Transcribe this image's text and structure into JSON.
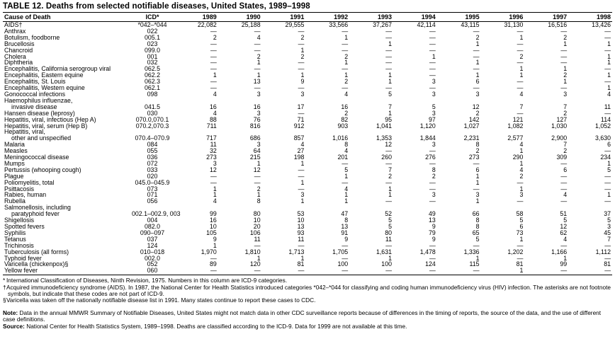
{
  "title": "TABLE 12. Deaths from selected notifiable diseases, United States, 1989–1998",
  "table": {
    "col_headers": [
      "Cause of Death",
      "ICD*",
      "1989",
      "1990",
      "1991",
      "1992",
      "1993",
      "1994",
      "1995",
      "1996",
      "1997",
      "1998"
    ],
    "rows": [
      [
        "AIDS†",
        "*042–*044",
        "22,082",
        "25,188",
        "29,555",
        "33,566",
        "37,267",
        "42,114",
        "43,115",
        "31,130",
        "16,516",
        "13,426"
      ],
      [
        "Anthrax",
        "022",
        "—",
        "—",
        "—",
        "—",
        "—",
        "—",
        "—",
        "—",
        "—",
        "—"
      ],
      [
        "Botulism, foodborne",
        "005.1",
        "2",
        "4",
        "2",
        "1",
        "—",
        "—",
        "2",
        "1",
        "2",
        "—"
      ],
      [
        "Brucellosis",
        "023",
        "—",
        "—",
        "—",
        "—",
        "1",
        "—",
        "1",
        "—",
        "1",
        "1"
      ],
      [
        "Chancroid",
        "099.0",
        "—",
        "—",
        "1",
        "—",
        "—",
        "—",
        "—",
        "—",
        "—",
        "—"
      ],
      [
        "Cholera",
        "001",
        "—",
        "2",
        "2",
        "2",
        "—",
        "1",
        "—",
        "2",
        "—",
        "1"
      ],
      [
        "Diphtheria",
        "032",
        "—",
        "1",
        "—",
        "1",
        "—",
        "—",
        "1",
        "—",
        "—",
        "1"
      ],
      [
        "Encephalitis, California serogroup viral",
        "062.5",
        "—",
        "—",
        "—",
        "—",
        "—",
        "—",
        "—",
        "1",
        "1",
        "—"
      ],
      [
        "Encephalitis, Eastern equine",
        "062.2",
        "1",
        "1",
        "1",
        "1",
        "1",
        "—",
        "1",
        "1",
        "2",
        "1"
      ],
      [
        "Encephalitis, St. Louis",
        "062.3",
        "—",
        "13",
        "9",
        "2",
        "1",
        "3",
        "6",
        "—",
        "1",
        "—"
      ],
      [
        "Encephalitis, Western equine",
        "062.1",
        "—",
        "—",
        "—",
        "—",
        "—",
        "—",
        "—",
        "—",
        "—",
        "1"
      ],
      [
        "Gonococcal infections",
        "098",
        "4",
        "3",
        "3",
        "4",
        "5",
        "3",
        "3",
        "4",
        "3",
        "4"
      ],
      [
        "Haemophilus influenzae,\ninvasive disease",
        "041.5",
        "16",
        "16",
        "17",
        "16",
        "7",
        "5",
        "12",
        "7",
        "7",
        "11"
      ],
      [
        "Hansen disease (leprosy)",
        "030",
        "4",
        "3",
        "—",
        "2",
        "1",
        "3",
        "2",
        "—",
        "2",
        "—"
      ],
      [
        "Hepatitis, viral, infectious (Hep A)",
        "070.0,070.1",
        "88",
        "76",
        "71",
        "82",
        "95",
        "97",
        "142",
        "121",
        "127",
        "114"
      ],
      [
        "Hepatitis, viral, serum (Hep B)",
        "070.2,070.3",
        "711",
        "816",
        "912",
        "903",
        "1,041",
        "1,120",
        "1,027",
        "1,082",
        "1,030",
        "1,052"
      ],
      [
        "Hepatitis, viral,\nother and unspecified",
        "070.4–070.9",
        "717",
        "686",
        "857",
        "1,016",
        "1,353",
        "1,844",
        "2,231",
        "2,577",
        "2,900",
        "3,630"
      ],
      [
        "Malaria",
        "084",
        "11",
        "3",
        "4",
        "8",
        "12",
        "3",
        "8",
        "4",
        "7",
        "6"
      ],
      [
        "Measles",
        "055",
        "32",
        "64",
        "27",
        "4",
        "—",
        "—",
        "2",
        "1",
        "2",
        "—"
      ],
      [
        "Meningococcal disease",
        "036",
        "273",
        "215",
        "198",
        "201",
        "260",
        "276",
        "273",
        "290",
        "309",
        "234"
      ],
      [
        "Mumps",
        "072",
        "3",
        "1",
        "1",
        "—",
        "—",
        "—",
        "—",
        "1",
        "—",
        "1"
      ],
      [
        "Pertussis (whooping cough)",
        "033",
        "12",
        "12",
        "—",
        "5",
        "7",
        "8",
        "6",
        "4",
        "6",
        "5"
      ],
      [
        "Plague",
        "020",
        "—",
        "—",
        "—",
        "1",
        "2",
        "2",
        "1",
        "2",
        "—",
        "—"
      ],
      [
        "Poliomyelitis, total",
        "045.0–045.9",
        "—",
        "—",
        "1",
        "—",
        "—",
        "—",
        "1",
        "—",
        "—",
        "—"
      ],
      [
        "Psittacosis",
        "073",
        "1",
        "2",
        "—",
        "4",
        "1",
        "—",
        "—",
        "1",
        "—",
        "—"
      ],
      [
        "Rabies, human",
        "071",
        "1",
        "1",
        "3",
        "1",
        "1",
        "3",
        "3",
        "3",
        "4",
        "1"
      ],
      [
        "Rubella",
        "056",
        "4",
        "8",
        "1",
        "1",
        "—",
        "—",
        "1",
        "—",
        "—",
        "—"
      ],
      [
        "Salmonellosis, including\nparatyphoid fever",
        "002.1–002.9, 003",
        "99",
        "80",
        "53",
        "47",
        "52",
        "49",
        "66",
        "58",
        "51",
        "37"
      ],
      [
        "Shigellosis",
        "004",
        "16",
        "10",
        "10",
        "8",
        "5",
        "13",
        "8",
        "5",
        "5",
        "5"
      ],
      [
        "Spotted fevers",
        "082.0",
        "10",
        "20",
        "13",
        "13",
        "5",
        "9",
        "8",
        "6",
        "12",
        "3"
      ],
      [
        "Syphilis",
        "090–097",
        "105",
        "106",
        "93",
        "91",
        "80",
        "79",
        "65",
        "73",
        "62",
        "45"
      ],
      [
        "Tetanus",
        "037",
        "9",
        "11",
        "11",
        "9",
        "11",
        "9",
        "5",
        "1",
        "4",
        "7"
      ],
      [
        "Trichinosis",
        "124",
        "1",
        "—",
        "—",
        "—",
        "—",
        "—",
        "—",
        "—",
        "—",
        "—"
      ],
      [
        "Tuberculosis (all forms)",
        "010–018",
        "1,970",
        "1,810",
        "1,713",
        "1,705",
        "1,631",
        "1,478",
        "1,336",
        "1,202",
        "1,166",
        "1,112"
      ],
      [
        "Typhoid fever",
        "002.0",
        "—",
        "1",
        "1",
        "—",
        "1",
        "—",
        "1",
        "—",
        "1",
        "—"
      ],
      [
        "Varicella (chickenpox)§",
        "052",
        "89",
        "120",
        "81",
        "100",
        "100",
        "124",
        "115",
        "81",
        "99",
        "81"
      ],
      [
        "Yellow fever",
        "060",
        "—",
        "—",
        "—",
        "—",
        "—",
        "—",
        "—",
        "1",
        "—",
        "—"
      ]
    ]
  },
  "footnotes": [
    {
      "marker": "*",
      "text": "International Classification of Diseases, Ninth Revision, 1975. Numbers in this column are ICD-9 categories."
    },
    {
      "marker": "†",
      "text": "Acquired immunodeficiency syndrome (AIDS). In 1987, the National Center for Health Statistics introduced categories *042–*044 for classifying and coding human immunodeficiency virus (HIV) infection. The asterisks are not footnote symbols, but indicate that these codes are not part of ICD-9."
    },
    {
      "marker": "§",
      "text": "Varicella was taken off the nationally notifiable disease list in 1991. Many states continue to report these cases to CDC."
    }
  ],
  "note": {
    "label": "Note:",
    "text": "Data in the annual MMWR Summary of Notifiable Diseases, United States might not match data in other CDC surveillance reports because of differences in the timing of reports, the source of the data, and the use of different case definitions."
  },
  "source": {
    "label": "Source:",
    "text": "National Center for Health Statistics System, 1989–1998. Deaths are classified according to the ICD-9. Data for 1999 are not available at this time."
  }
}
